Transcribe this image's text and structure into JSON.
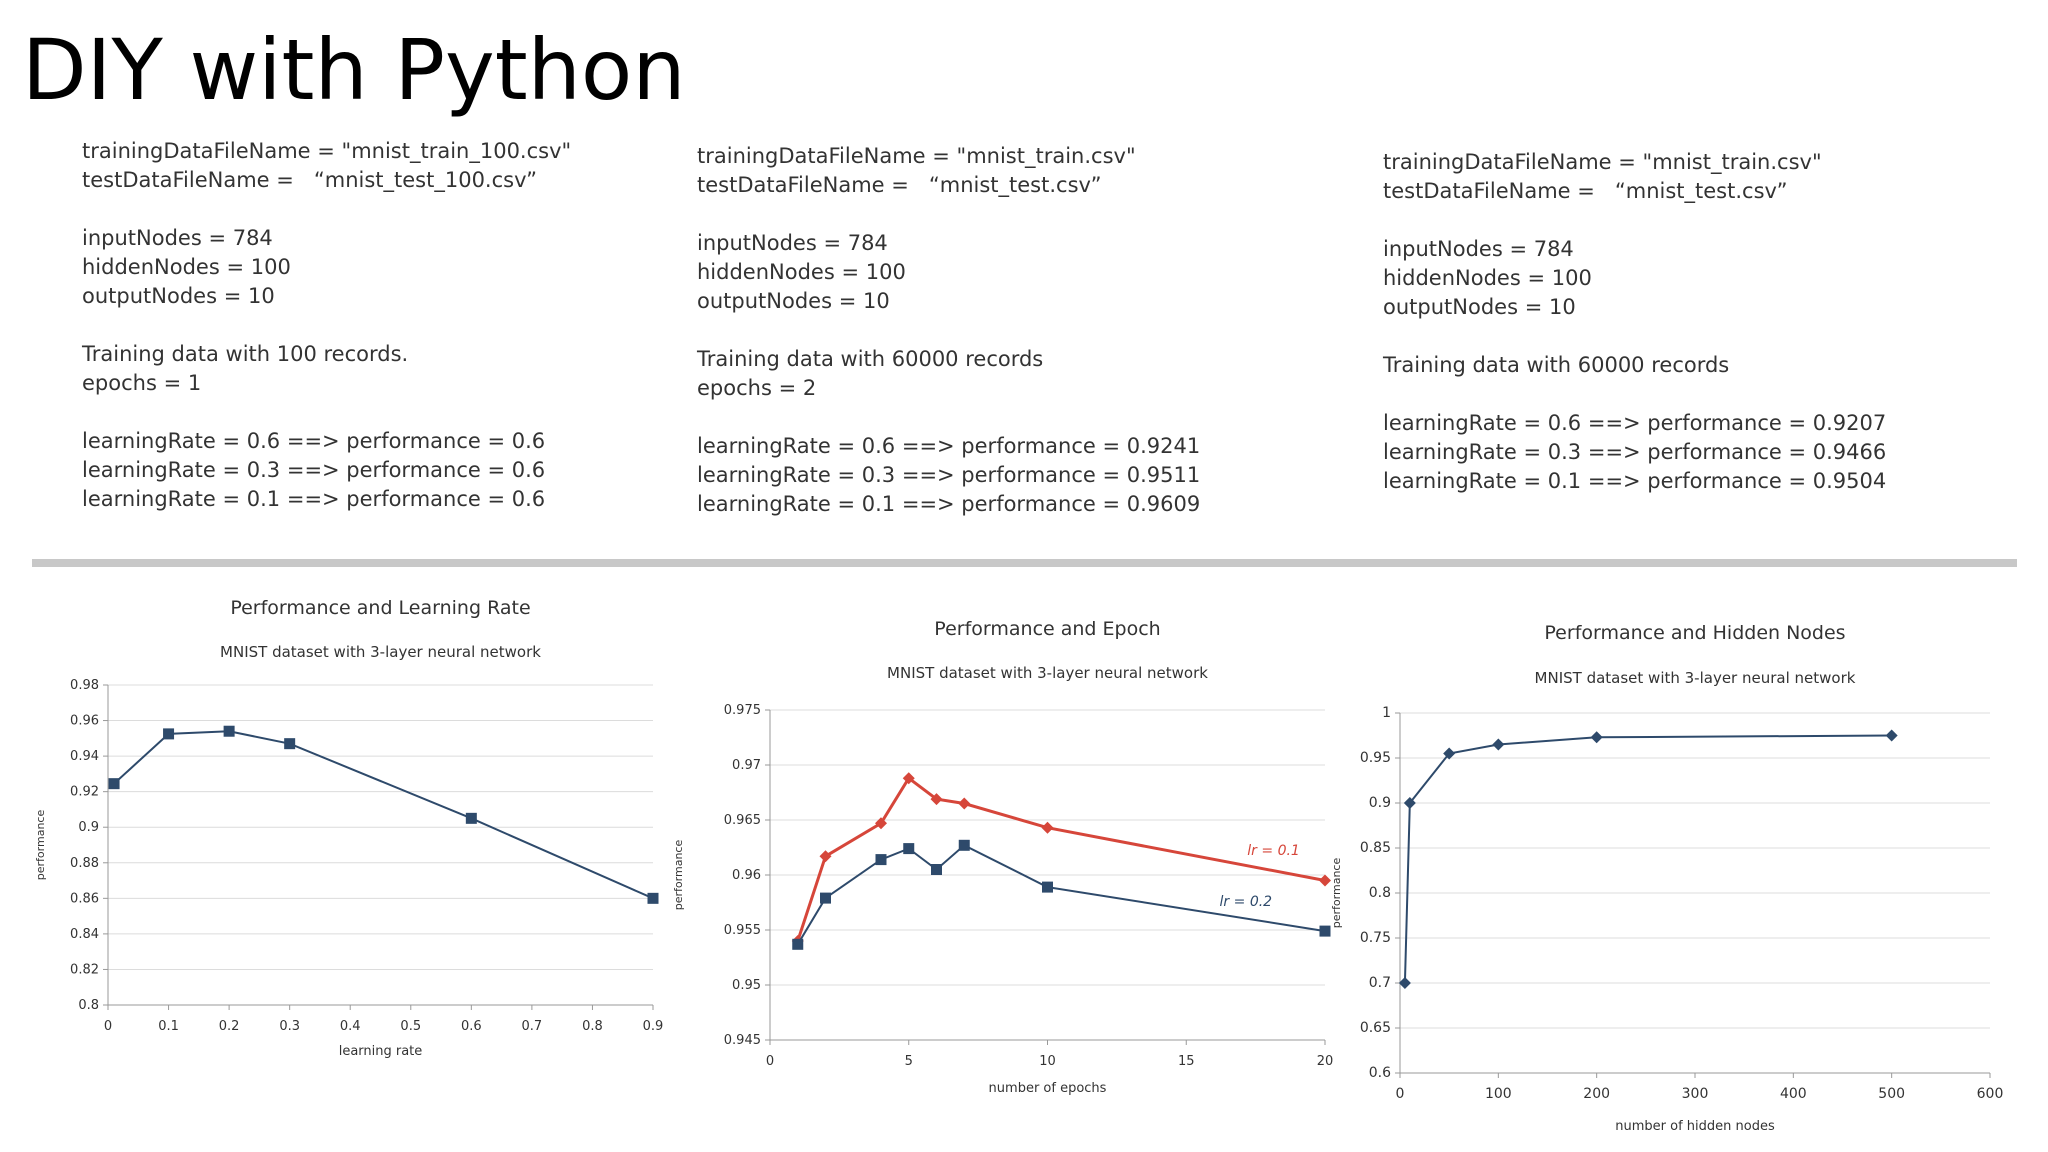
{
  "slide": {
    "title": "DIY with Python"
  },
  "config_columns": [
    {
      "lines": [
        "trainingDataFileName = \"mnist_train_100.csv\"",
        "testDataFileName =   “mnist_test_100.csv”",
        "",
        "inputNodes = 784",
        "hiddenNodes = 100",
        "outputNodes = 10",
        "",
        "Training data with 100 records.",
        "epochs = 1",
        "",
        "learningRate = 0.6 ==> performance = 0.6",
        "learningRate = 0.3 ==> performance = 0.6",
        "learningRate = 0.1 ==> performance = 0.6"
      ]
    },
    {
      "lines": [
        "trainingDataFileName = \"mnist_train.csv\"",
        "testDataFileName =   “mnist_test.csv”",
        "",
        "inputNodes = 784",
        "hiddenNodes = 100",
        "outputNodes = 10",
        "",
        "Training data with 60000 records",
        "epochs = 2",
        "",
        "learningRate = 0.6 ==> performance = 0.9241",
        "learningRate = 0.3 ==> performance = 0.9511",
        "learningRate = 0.1 ==> performance = 0.9609"
      ]
    },
    {
      "lines": [
        "trainingDataFileName = \"mnist_train.csv\"",
        "testDataFileName =   “mnist_test.csv”",
        "",
        "inputNodes = 784",
        "hiddenNodes = 100",
        "outputNodes = 10",
        "",
        "Training data with 60000 records",
        "",
        "learningRate = 0.6 ==> performance = 0.9207",
        "learningRate = 0.3 ==> performance = 0.9466",
        "learningRate = 0.1 ==> performance = 0.9504"
      ]
    }
  ],
  "chart_data": [
    {
      "type": "line",
      "title": "Performance and Learning Rate",
      "subtitle": "MNIST dataset with 3-layer neural network",
      "xlabel": "learning rate",
      "ylabel": "performance",
      "xlim": [
        0,
        0.9
      ],
      "xticks": [
        0,
        0.1,
        0.2,
        0.3,
        0.4,
        0.5,
        0.6,
        0.7,
        0.8,
        0.9
      ],
      "xtick_labels": [
        "0",
        "0.1",
        "0.2",
        "0.3",
        "0.4",
        "0.5",
        "0.6",
        "0.7",
        "0.8",
        "0.9"
      ],
      "ylim": [
        0.8,
        0.98
      ],
      "yticks": [
        0.8,
        0.82,
        0.84,
        0.86,
        0.88,
        0.9,
        0.92,
        0.94,
        0.96,
        0.98
      ],
      "ytick_labels": [
        "0.8",
        "0.82",
        "0.84",
        "0.86",
        "0.88",
        "0.9",
        "0.92",
        "0.94",
        "0.96",
        "0.98"
      ],
      "grid": true,
      "series": [
        {
          "name": "performance",
          "color": "#2e4a6b",
          "marker": "square",
          "x": [
            0.01,
            0.1,
            0.2,
            0.3,
            0.6,
            0.9
          ],
          "y": [
            0.9245,
            0.9525,
            0.954,
            0.947,
            0.905,
            0.86
          ]
        }
      ],
      "annotations": []
    },
    {
      "type": "line",
      "title": "Performance and Epoch",
      "subtitle": "MNIST dataset with 3-layer neural network",
      "xlabel": "number of epochs",
      "ylabel": "performance",
      "xlim": [
        0,
        20
      ],
      "xticks": [
        0,
        5,
        10,
        15,
        20
      ],
      "xtick_labels": [
        "0",
        "5",
        "10",
        "15",
        "20"
      ],
      "ylim": [
        0.945,
        0.975
      ],
      "yticks": [
        0.945,
        0.95,
        0.955,
        0.96,
        0.965,
        0.97,
        0.975
      ],
      "ytick_labels": [
        "0.945",
        "0.95",
        "0.955",
        "0.96",
        "0.965",
        "0.97",
        "0.975"
      ],
      "grid": true,
      "series": [
        {
          "name": "lr = 0.1",
          "color": "#d6463a",
          "marker": "diamond",
          "x": [
            1,
            2,
            4,
            5,
            6,
            7,
            10,
            20
          ],
          "y": [
            0.954,
            0.9617,
            0.9647,
            0.9688,
            0.9669,
            0.9665,
            0.9643,
            0.9595
          ]
        },
        {
          "name": "lr = 0.2",
          "color": "#2e4a6b",
          "marker": "square",
          "x": [
            1,
            2,
            4,
            5,
            6,
            7,
            10,
            20
          ],
          "y": [
            0.9537,
            0.9579,
            0.9614,
            0.9624,
            0.9605,
            0.9627,
            0.9589,
            0.9549
          ]
        }
      ],
      "annotations": [
        {
          "text": "lr = 0.1",
          "x": 17.2,
          "y": 0.9618,
          "color": "#d6463a"
        },
        {
          "text": "lr = 0.2",
          "x": 16.2,
          "y": 0.9572,
          "color": "#2e4a6b"
        }
      ]
    },
    {
      "type": "line",
      "title": "Performance and Hidden Nodes",
      "subtitle": "MNIST dataset with 3-layer neural network",
      "xlabel": "number of hidden nodes",
      "ylabel": "performance",
      "xlim": [
        0,
        600
      ],
      "xticks": [
        0,
        100,
        200,
        300,
        400,
        500,
        600
      ],
      "xtick_labels": [
        "0",
        "100",
        "200",
        "300",
        "400",
        "500",
        "600"
      ],
      "ylim": [
        0.6,
        1
      ],
      "yticks": [
        0.6,
        0.65,
        0.7,
        0.75,
        0.8,
        0.85,
        0.9,
        0.95,
        1
      ],
      "ytick_labels": [
        "0.6",
        "0.65",
        "0.7",
        "0.75",
        "0.8",
        "0.85",
        "0.9",
        "0.95",
        "1"
      ],
      "grid": true,
      "series": [
        {
          "name": "performance",
          "color": "#2e4a6b",
          "marker": "diamond",
          "x": [
            5,
            10,
            50,
            100,
            200,
            500
          ],
          "y": [
            0.7,
            0.9,
            0.955,
            0.965,
            0.973,
            0.975
          ]
        }
      ],
      "annotations": []
    }
  ]
}
